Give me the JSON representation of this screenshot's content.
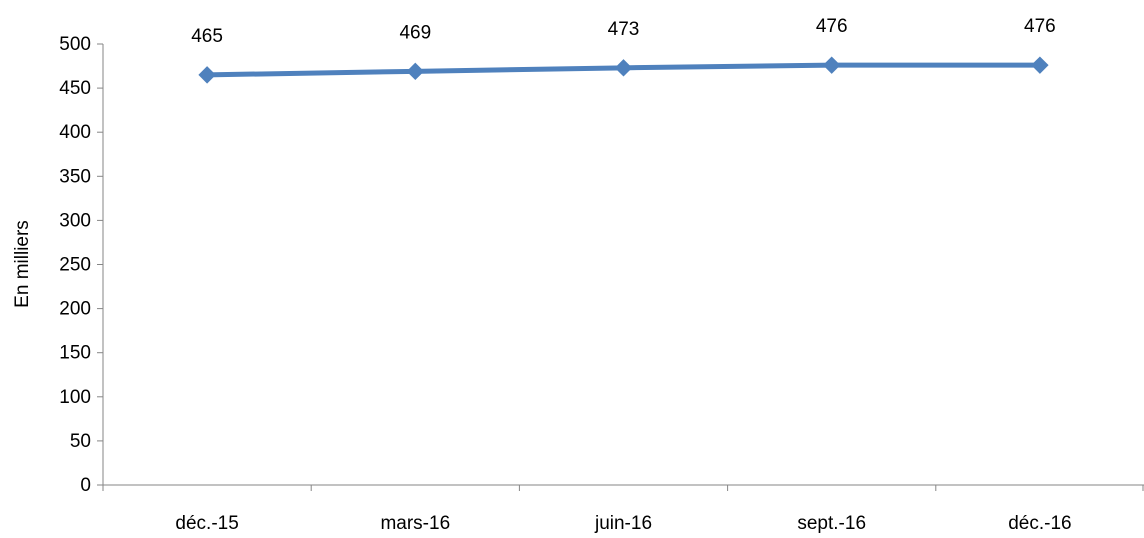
{
  "chart_data": {
    "type": "line",
    "title": "",
    "xlabel": "",
    "ylabel": "En milliers",
    "categories": [
      "déc.-15",
      "mars-16",
      "juin-16",
      "sept.-16",
      "déc.-16"
    ],
    "series": [
      {
        "values": [
          465,
          469,
          473,
          476,
          476
        ],
        "color": "#4F81BD",
        "marker": "diamond"
      }
    ],
    "data_labels": [
      "465",
      "469",
      "473",
      "476",
      "476"
    ],
    "ylim": [
      0,
      500
    ],
    "yticks": [
      "0",
      "50",
      "100",
      "150",
      "200",
      "250",
      "300",
      "350",
      "400",
      "450",
      "500"
    ],
    "grid": false,
    "legend": "none"
  }
}
